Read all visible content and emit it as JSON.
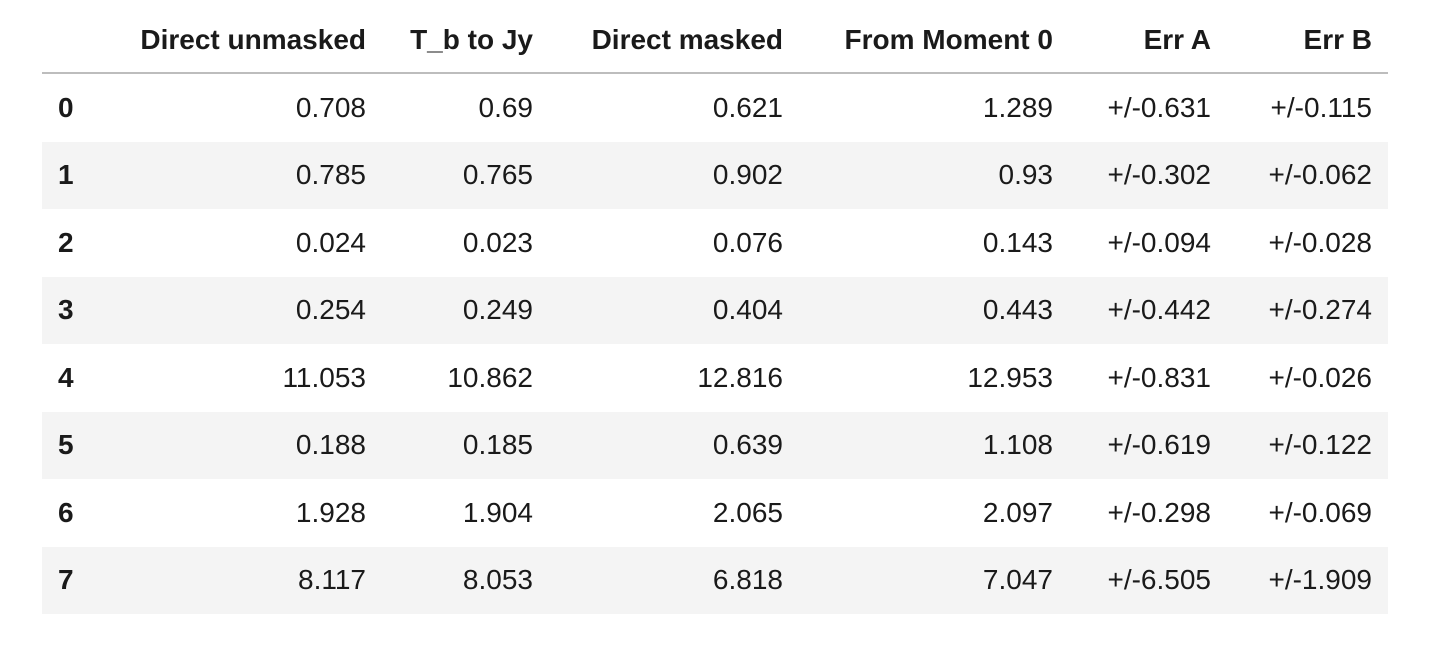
{
  "table": {
    "columns": [
      "",
      "Direct unmasked",
      "T_b to Jy",
      "Direct masked",
      "From Moment 0",
      "Err A",
      "Err B"
    ],
    "rows": [
      {
        "index": "0",
        "cells": [
          "0.708",
          "0.69",
          "0.621",
          "1.289",
          "+/-0.631",
          "+/-0.115"
        ]
      },
      {
        "index": "1",
        "cells": [
          "0.785",
          "0.765",
          "0.902",
          "0.93",
          "+/-0.302",
          "+/-0.062"
        ]
      },
      {
        "index": "2",
        "cells": [
          "0.024",
          "0.023",
          "0.076",
          "0.143",
          "+/-0.094",
          "+/-0.028"
        ]
      },
      {
        "index": "3",
        "cells": [
          "0.254",
          "0.249",
          "0.404",
          "0.443",
          "+/-0.442",
          "+/-0.274"
        ]
      },
      {
        "index": "4",
        "cells": [
          "11.053",
          "10.862",
          "12.816",
          "12.953",
          "+/-0.831",
          "+/-0.026"
        ]
      },
      {
        "index": "5",
        "cells": [
          "0.188",
          "0.185",
          "0.639",
          "1.108",
          "+/-0.619",
          "+/-0.122"
        ]
      },
      {
        "index": "6",
        "cells": [
          "1.928",
          "1.904",
          "2.065",
          "2.097",
          "+/-0.298",
          "+/-0.069"
        ]
      },
      {
        "index": "7",
        "cells": [
          "8.117",
          "8.053",
          "6.818",
          "7.047",
          "+/-6.505",
          "+/-1.909"
        ]
      }
    ]
  }
}
